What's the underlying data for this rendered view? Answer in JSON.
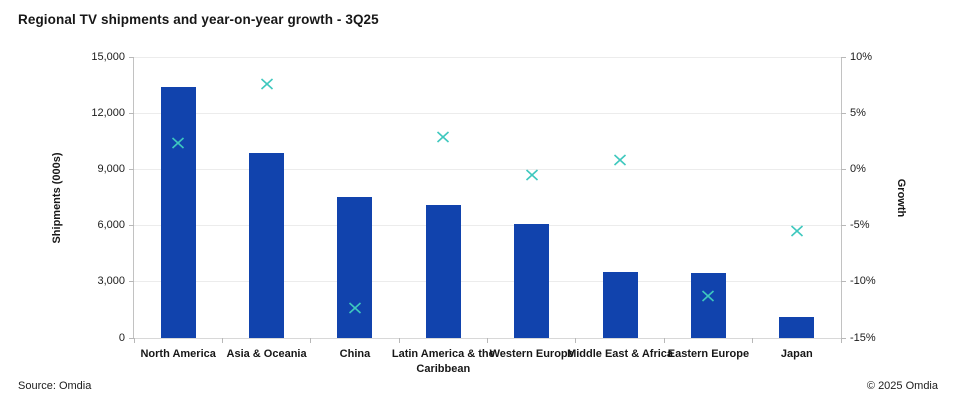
{
  "chart_data": {
    "type": "bar",
    "title": "Regional TV shipments and year-on-year growth - 3Q25",
    "categories": [
      "North America",
      "Asia & Oceania",
      "China",
      "Latin America & the Caribbean",
      "Western Europe",
      "Middle East & Africa",
      "Eastern Europe",
      "Japan"
    ],
    "series": [
      {
        "name": "Shipments (000s)",
        "type": "bar",
        "axis": "left",
        "color": "#1143ad",
        "values": [
          13400,
          9900,
          7550,
          7100,
          6100,
          3500,
          3450,
          1100
        ]
      },
      {
        "name": "Growth",
        "type": "scatter",
        "marker": "x",
        "axis": "right",
        "color": "#3ec8be",
        "values": [
          2.4,
          7.7,
          -12.2,
          3.0,
          -0.4,
          0.9,
          -11.2,
          -5.4
        ]
      }
    ],
    "xlabel": "",
    "ylabel": "Shipments (000s)",
    "y2label": "Growth",
    "ylim": [
      0,
      15000
    ],
    "y2lim": [
      -15,
      10
    ],
    "yticks": [
      "0",
      "3,000",
      "6,000",
      "9,000",
      "12,000",
      "15,000"
    ],
    "y2ticks": [
      "-15%",
      "-10%",
      "-5%",
      "0%",
      "5%",
      "10%"
    ],
    "grid": true,
    "legend_position": "none"
  },
  "footer": {
    "source": "Source: Omdia",
    "copyright": "© 2025 Omdia"
  }
}
